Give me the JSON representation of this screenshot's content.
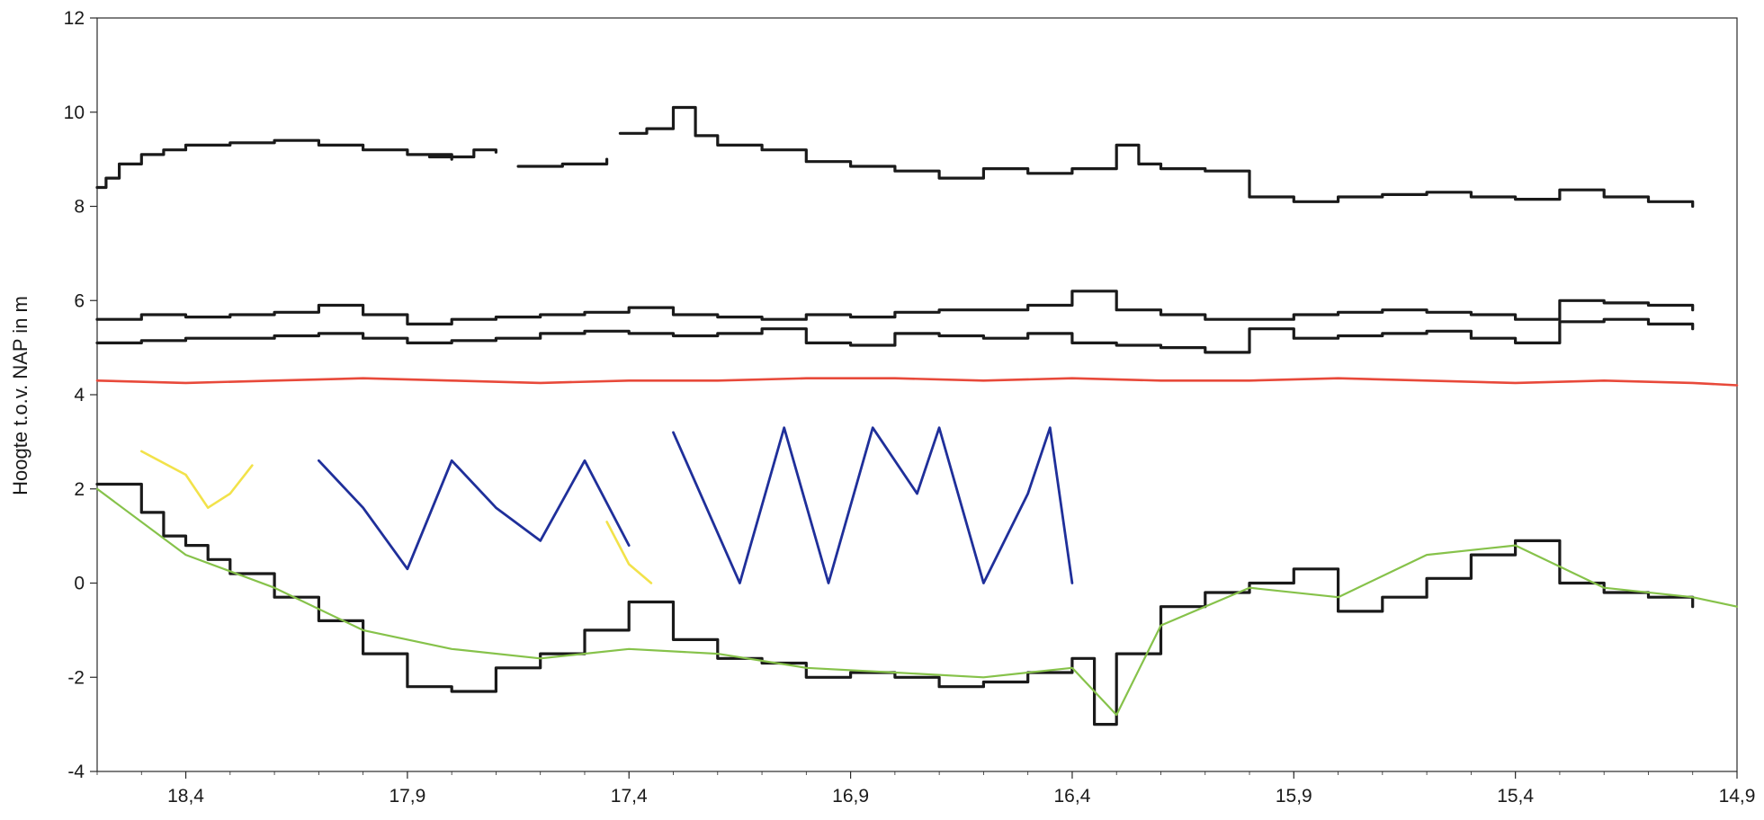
{
  "chart_data": {
    "type": "line",
    "title": "",
    "xlabel": "",
    "ylabel": "Hoogte t.o.v. NAP in m",
    "xlim": [
      18.6,
      14.9
    ],
    "ylim": [
      -4,
      12
    ],
    "x_reversed": true,
    "xticks": [
      18.4,
      17.9,
      17.4,
      16.9,
      16.4,
      15.9,
      15.4,
      14.9
    ],
    "xtick_labels": [
      "18,4",
      "17,9",
      "17,4",
      "16,9",
      "16,4",
      "15,9",
      "15,4",
      "14,9"
    ],
    "yticks": [
      -4,
      -2,
      0,
      2,
      4,
      6,
      8,
      10,
      12
    ],
    "ytick_labels": [
      "-4",
      "-2",
      "0",
      "2",
      "4",
      "6",
      "8",
      "10",
      "12"
    ],
    "grid": false,
    "legend": "none",
    "colors": {
      "black": "#1a1a1a",
      "red": "#e8493a",
      "blue": "#1f2f9a",
      "green": "#86c24a",
      "yellow": "#f2e24a"
    },
    "series": [
      {
        "color": "black",
        "style": "step",
        "points": [
          [
            18.6,
            8.4
          ],
          [
            18.58,
            8.6
          ],
          [
            18.55,
            8.9
          ],
          [
            18.5,
            9.1
          ],
          [
            18.45,
            9.2
          ],
          [
            18.4,
            9.3
          ],
          [
            18.3,
            9.35
          ],
          [
            18.2,
            9.4
          ],
          [
            18.1,
            9.3
          ],
          [
            18.0,
            9.2
          ],
          [
            17.9,
            9.1
          ],
          [
            17.8,
            9.0
          ]
        ]
      },
      {
        "color": "black",
        "style": "step",
        "points": [
          [
            17.85,
            9.05
          ],
          [
            17.75,
            9.2
          ],
          [
            17.7,
            9.15
          ]
        ]
      },
      {
        "color": "black",
        "style": "step",
        "points": [
          [
            17.65,
            8.85
          ],
          [
            17.55,
            8.9
          ],
          [
            17.45,
            9.0
          ]
        ]
      },
      {
        "color": "black",
        "style": "step",
        "points": [
          [
            17.42,
            9.55
          ],
          [
            17.36,
            9.65
          ],
          [
            17.3,
            10.1
          ],
          [
            17.25,
            9.5
          ],
          [
            17.2,
            9.3
          ],
          [
            17.1,
            9.2
          ],
          [
            17.0,
            8.95
          ],
          [
            16.9,
            8.85
          ],
          [
            16.8,
            8.75
          ],
          [
            16.7,
            8.6
          ],
          [
            16.6,
            8.8
          ],
          [
            16.5,
            8.7
          ],
          [
            16.4,
            8.8
          ],
          [
            16.3,
            9.3
          ],
          [
            16.25,
            8.9
          ],
          [
            16.2,
            8.8
          ],
          [
            16.1,
            8.75
          ],
          [
            16.0,
            8.2
          ],
          [
            15.9,
            8.1
          ],
          [
            15.8,
            8.2
          ],
          [
            15.7,
            8.25
          ],
          [
            15.6,
            8.3
          ],
          [
            15.5,
            8.2
          ],
          [
            15.4,
            8.15
          ],
          [
            15.3,
            8.35
          ],
          [
            15.2,
            8.2
          ],
          [
            15.1,
            8.1
          ],
          [
            15.0,
            8.0
          ]
        ]
      },
      {
        "color": "black",
        "style": "step",
        "points": [
          [
            18.6,
            5.6
          ],
          [
            18.5,
            5.7
          ],
          [
            18.4,
            5.65
          ],
          [
            18.3,
            5.7
          ],
          [
            18.2,
            5.75
          ],
          [
            18.1,
            5.9
          ],
          [
            18.0,
            5.7
          ],
          [
            17.9,
            5.5
          ],
          [
            17.8,
            5.6
          ],
          [
            17.7,
            5.65
          ],
          [
            17.6,
            5.7
          ],
          [
            17.5,
            5.75
          ],
          [
            17.4,
            5.85
          ],
          [
            17.3,
            5.7
          ],
          [
            17.2,
            5.65
          ],
          [
            17.1,
            5.6
          ],
          [
            17.0,
            5.7
          ],
          [
            16.9,
            5.65
          ],
          [
            16.8,
            5.75
          ],
          [
            16.7,
            5.8
          ],
          [
            16.6,
            5.8
          ],
          [
            16.5,
            5.9
          ],
          [
            16.4,
            6.2
          ],
          [
            16.3,
            5.8
          ],
          [
            16.2,
            5.7
          ],
          [
            16.1,
            5.6
          ],
          [
            16.0,
            5.6
          ],
          [
            15.9,
            5.7
          ],
          [
            15.8,
            5.75
          ],
          [
            15.7,
            5.8
          ],
          [
            15.6,
            5.75
          ],
          [
            15.5,
            5.7
          ],
          [
            15.4,
            5.6
          ],
          [
            15.3,
            6.0
          ],
          [
            15.2,
            5.95
          ],
          [
            15.1,
            5.9
          ],
          [
            15.0,
            5.8
          ]
        ]
      },
      {
        "color": "black",
        "style": "step",
        "points": [
          [
            18.6,
            5.1
          ],
          [
            18.5,
            5.15
          ],
          [
            18.4,
            5.2
          ],
          [
            18.3,
            5.2
          ],
          [
            18.2,
            5.25
          ],
          [
            18.1,
            5.3
          ],
          [
            18.0,
            5.2
          ],
          [
            17.9,
            5.1
          ],
          [
            17.8,
            5.15
          ],
          [
            17.7,
            5.2
          ],
          [
            17.6,
            5.3
          ],
          [
            17.5,
            5.35
          ],
          [
            17.4,
            5.3
          ],
          [
            17.3,
            5.25
          ],
          [
            17.2,
            5.3
          ],
          [
            17.1,
            5.4
          ],
          [
            17.0,
            5.1
          ],
          [
            16.9,
            5.05
          ],
          [
            16.8,
            5.3
          ],
          [
            16.7,
            5.25
          ],
          [
            16.6,
            5.2
          ],
          [
            16.5,
            5.3
          ],
          [
            16.4,
            5.1
          ],
          [
            16.3,
            5.05
          ],
          [
            16.2,
            5.0
          ],
          [
            16.1,
            4.9
          ],
          [
            16.0,
            5.4
          ],
          [
            15.9,
            5.2
          ],
          [
            15.8,
            5.25
          ],
          [
            15.7,
            5.3
          ],
          [
            15.6,
            5.35
          ],
          [
            15.5,
            5.2
          ],
          [
            15.4,
            5.1
          ],
          [
            15.3,
            5.55
          ],
          [
            15.2,
            5.6
          ],
          [
            15.1,
            5.5
          ],
          [
            15.0,
            5.4
          ]
        ]
      },
      {
        "color": "red",
        "style": "line",
        "points": [
          [
            18.6,
            4.3
          ],
          [
            18.4,
            4.25
          ],
          [
            18.2,
            4.3
          ],
          [
            18.0,
            4.35
          ],
          [
            17.8,
            4.3
          ],
          [
            17.6,
            4.25
          ],
          [
            17.4,
            4.3
          ],
          [
            17.2,
            4.3
          ],
          [
            17.0,
            4.35
          ],
          [
            16.8,
            4.35
          ],
          [
            16.6,
            4.3
          ],
          [
            16.4,
            4.35
          ],
          [
            16.2,
            4.3
          ],
          [
            16.0,
            4.3
          ],
          [
            15.8,
            4.35
          ],
          [
            15.6,
            4.3
          ],
          [
            15.4,
            4.25
          ],
          [
            15.2,
            4.3
          ],
          [
            15.0,
            4.25
          ],
          [
            14.9,
            4.2
          ]
        ]
      },
      {
        "color": "black",
        "style": "step",
        "points": [
          [
            18.6,
            2.1
          ],
          [
            18.5,
            1.5
          ],
          [
            18.45,
            1.0
          ],
          [
            18.4,
            0.8
          ],
          [
            18.35,
            0.5
          ],
          [
            18.3,
            0.2
          ],
          [
            18.2,
            -0.3
          ],
          [
            18.1,
            -0.8
          ],
          [
            18.0,
            -1.5
          ],
          [
            17.9,
            -2.2
          ],
          [
            17.8,
            -2.3
          ],
          [
            17.7,
            -1.8
          ],
          [
            17.6,
            -1.5
          ],
          [
            17.5,
            -1.0
          ],
          [
            17.4,
            -0.4
          ],
          [
            17.3,
            -1.2
          ],
          [
            17.2,
            -1.6
          ],
          [
            17.1,
            -1.7
          ],
          [
            17.0,
            -2.0
          ],
          [
            16.9,
            -1.9
          ],
          [
            16.8,
            -2.0
          ],
          [
            16.7,
            -2.2
          ],
          [
            16.6,
            -2.1
          ],
          [
            16.5,
            -1.9
          ],
          [
            16.4,
            -1.6
          ],
          [
            16.35,
            -3.0
          ],
          [
            16.3,
            -1.5
          ],
          [
            16.2,
            -0.5
          ],
          [
            16.1,
            -0.2
          ],
          [
            16.0,
            0.0
          ],
          [
            15.9,
            0.3
          ],
          [
            15.8,
            -0.6
          ],
          [
            15.7,
            -0.3
          ],
          [
            15.6,
            0.1
          ],
          [
            15.5,
            0.6
          ],
          [
            15.4,
            0.9
          ],
          [
            15.3,
            0.0
          ],
          [
            15.2,
            -0.2
          ],
          [
            15.1,
            -0.3
          ],
          [
            15.0,
            -0.5
          ]
        ]
      },
      {
        "color": "blue",
        "style": "line",
        "points": [
          [
            18.1,
            2.6
          ],
          [
            18.0,
            1.6
          ],
          [
            17.9,
            0.3
          ],
          [
            17.8,
            2.6
          ],
          [
            17.7,
            1.6
          ],
          [
            17.6,
            0.9
          ],
          [
            17.5,
            2.6
          ],
          [
            17.4,
            0.8
          ]
        ]
      },
      {
        "color": "blue",
        "style": "line",
        "points": [
          [
            17.3,
            3.2
          ],
          [
            17.15,
            0.0
          ],
          [
            17.05,
            3.3
          ],
          [
            16.95,
            0.0
          ],
          [
            16.85,
            3.3
          ],
          [
            16.75,
            1.9
          ],
          [
            16.7,
            3.3
          ],
          [
            16.6,
            0.0
          ],
          [
            16.5,
            1.9
          ],
          [
            16.45,
            3.3
          ],
          [
            16.4,
            0.0
          ]
        ]
      },
      {
        "color": "green",
        "style": "line",
        "points": [
          [
            18.6,
            2.0
          ],
          [
            18.4,
            0.6
          ],
          [
            18.2,
            -0.1
          ],
          [
            18.0,
            -1.0
          ],
          [
            17.8,
            -1.4
          ],
          [
            17.6,
            -1.6
          ],
          [
            17.4,
            -1.4
          ],
          [
            17.2,
            -1.5
          ],
          [
            17.0,
            -1.8
          ],
          [
            16.8,
            -1.9
          ],
          [
            16.6,
            -2.0
          ],
          [
            16.4,
            -1.8
          ],
          [
            16.3,
            -2.8
          ],
          [
            16.2,
            -0.9
          ],
          [
            16.0,
            -0.1
          ],
          [
            15.8,
            -0.3
          ],
          [
            15.6,
            0.6
          ],
          [
            15.4,
            0.8
          ],
          [
            15.2,
            -0.1
          ],
          [
            15.0,
            -0.3
          ],
          [
            14.9,
            -0.5
          ]
        ]
      },
      {
        "color": "yellow",
        "style": "line",
        "points": [
          [
            18.5,
            2.8
          ],
          [
            18.4,
            2.3
          ],
          [
            18.35,
            1.6
          ],
          [
            18.3,
            1.9
          ],
          [
            18.25,
            2.5
          ]
        ]
      },
      {
        "color": "yellow",
        "style": "line",
        "points": [
          [
            17.45,
            1.3
          ],
          [
            17.4,
            0.4
          ],
          [
            17.35,
            0.0
          ]
        ]
      }
    ]
  }
}
